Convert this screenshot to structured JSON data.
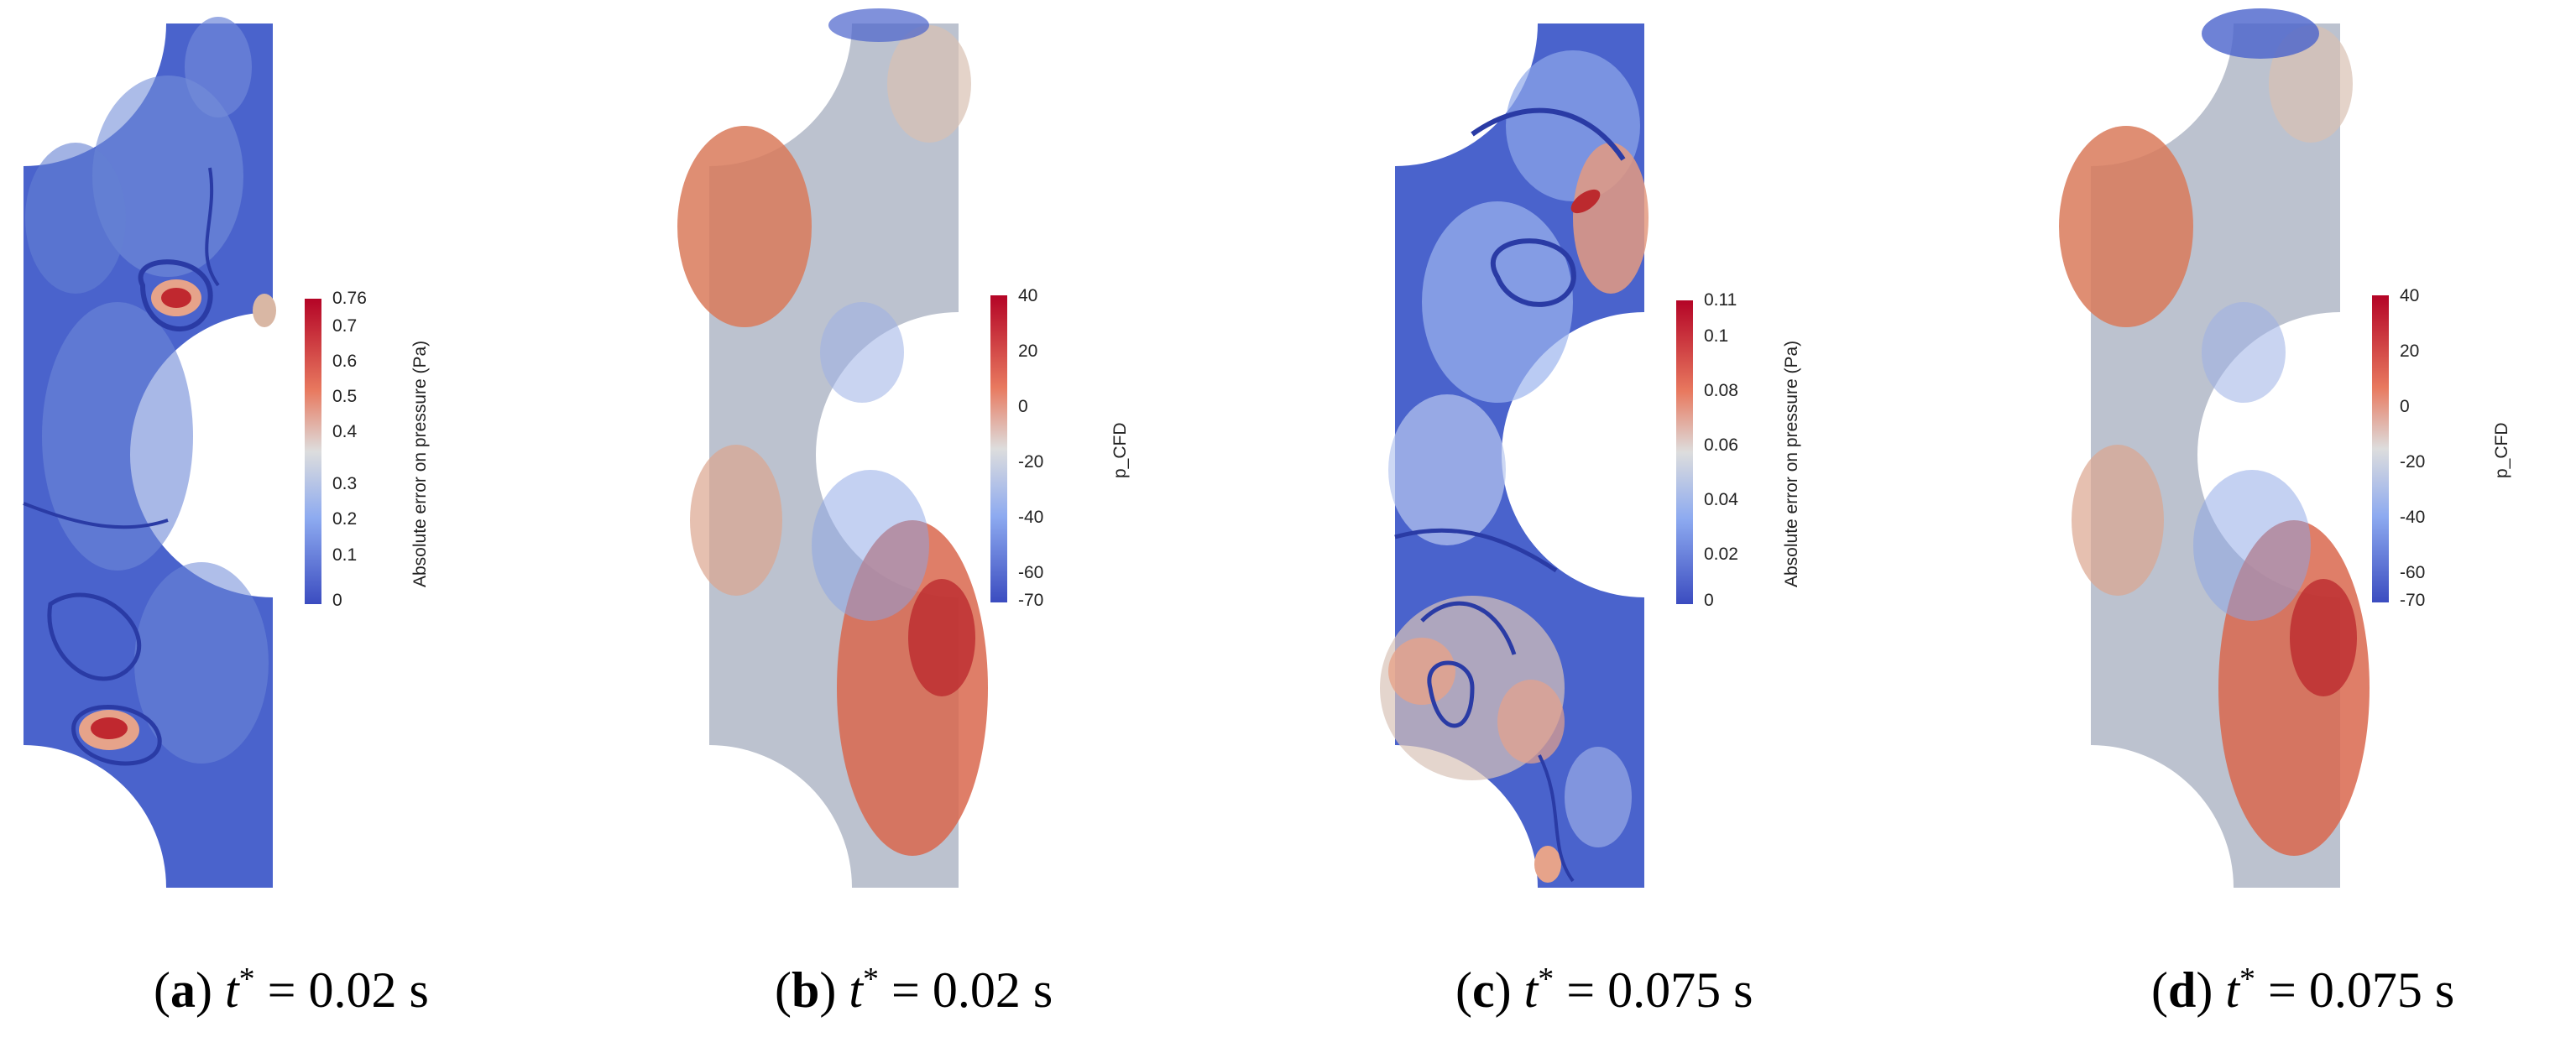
{
  "panels": [
    {
      "letter": "a",
      "variable": "t",
      "superscript": "*",
      "equals": "=",
      "time": "0.02 s",
      "colorbar": {
        "title": "Absolute error on pressure (Pa)",
        "ticks": [
          "0.76",
          "0.7",
          "0.6",
          "0.5",
          "0.4",
          "0.3",
          "0.2",
          "0.1",
          "0"
        ]
      },
      "field": "error"
    },
    {
      "letter": "b",
      "variable": "t",
      "superscript": "*",
      "equals": "=",
      "time": "0.02 s",
      "colorbar": {
        "title": "p_CFD",
        "ticks": [
          "40",
          "20",
          "0",
          "-20",
          "-40",
          "-60",
          "-70"
        ]
      },
      "field": "pressure"
    },
    {
      "letter": "c",
      "variable": "t",
      "superscript": "*",
      "equals": "=",
      "time": "0.075 s",
      "colorbar": {
        "title": "Absolute error on pressure (Pa)",
        "ticks": [
          "0.11",
          "0.1",
          "0.08",
          "0.06",
          "0.04",
          "0.02",
          "0"
        ]
      },
      "field": "error"
    },
    {
      "letter": "d",
      "variable": "t",
      "superscript": "*",
      "equals": "=",
      "time": "0.075 s",
      "colorbar": {
        "title": "p_CFD",
        "ticks": [
          "40",
          "20",
          "0",
          "-20",
          "-40",
          "-60",
          "-70"
        ]
      },
      "field": "pressure"
    }
  ],
  "colors": {
    "cool": "#3b4cc0",
    "neutral": "#dddddd",
    "warm": "#b40426"
  }
}
